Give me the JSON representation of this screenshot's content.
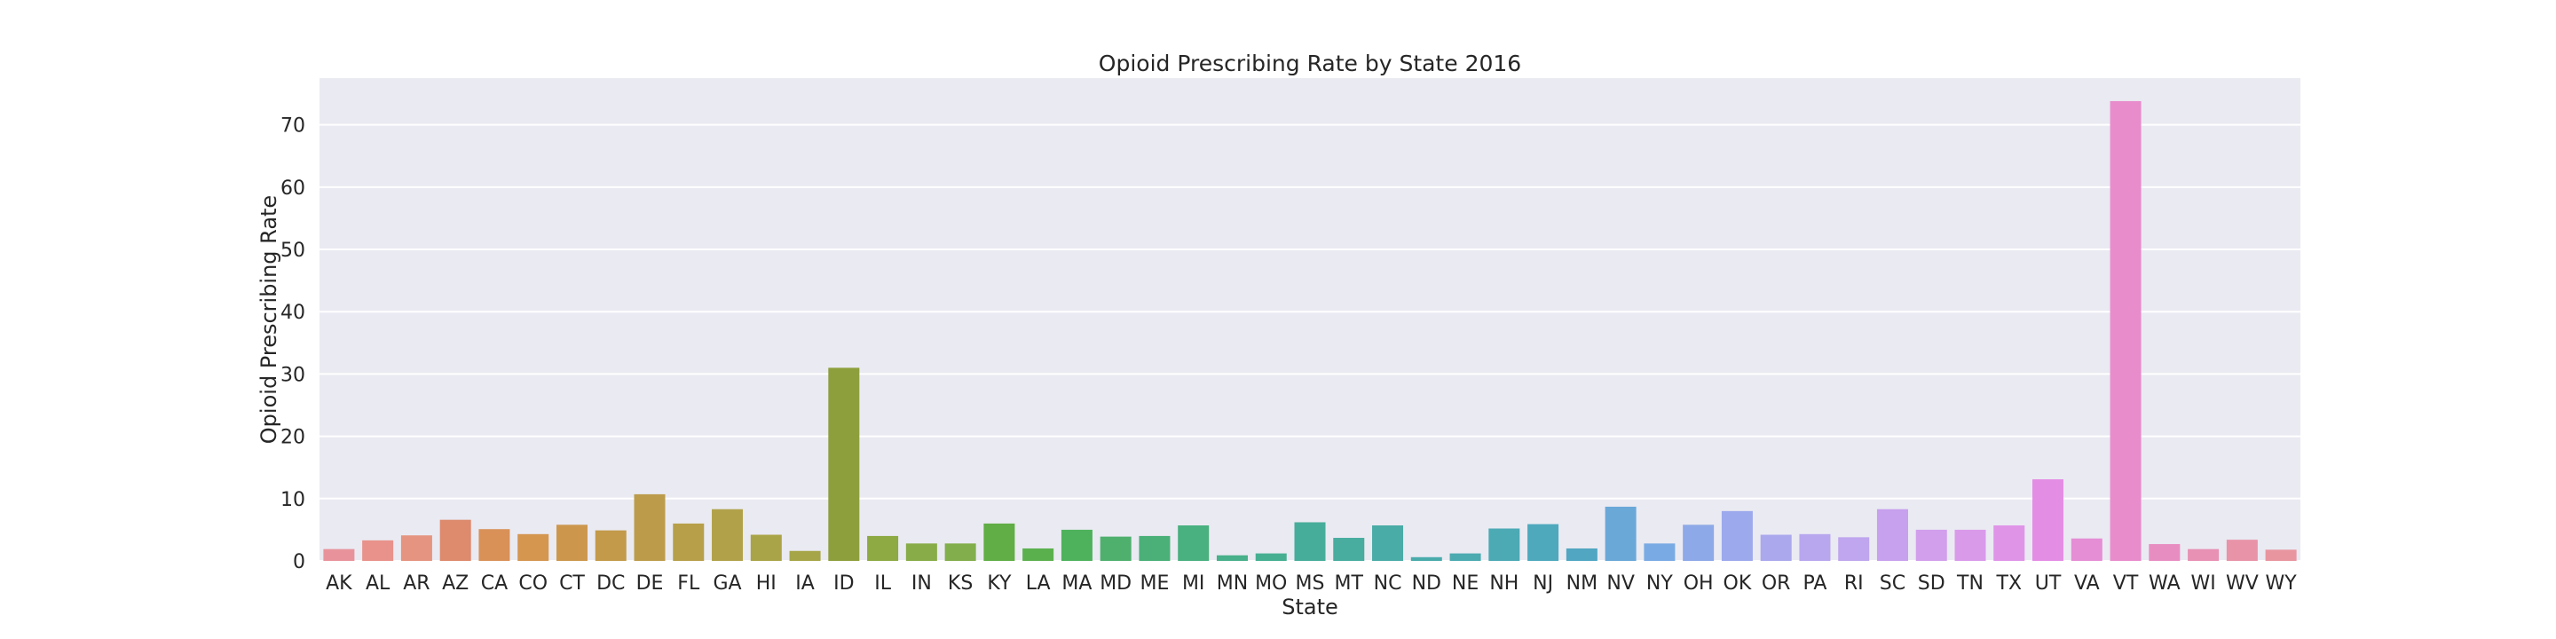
{
  "chart_data": {
    "type": "bar",
    "title": "Opioid Prescribing Rate by State 2016",
    "xlabel": "State",
    "ylabel": "Opioid Prescribing Rate",
    "ylim": [
      0,
      77.5
    ],
    "yticks": [
      0,
      10,
      20,
      30,
      40,
      50,
      60,
      70
    ],
    "grid": true,
    "categories": [
      "AK",
      "AL",
      "AR",
      "AZ",
      "CA",
      "CO",
      "CT",
      "DC",
      "DE",
      "FL",
      "GA",
      "HI",
      "IA",
      "ID",
      "IL",
      "IN",
      "KS",
      "KY",
      "LA",
      "MA",
      "MD",
      "ME",
      "MI",
      "MN",
      "MO",
      "MS",
      "MT",
      "NC",
      "ND",
      "NE",
      "NH",
      "NJ",
      "NM",
      "NV",
      "NY",
      "OH",
      "OK",
      "OR",
      "PA",
      "RI",
      "SC",
      "SD",
      "TN",
      "TX",
      "UT",
      "VA",
      "VT",
      "WA",
      "WI",
      "WV",
      "WY"
    ],
    "values": [
      1.9,
      3.3,
      4.1,
      6.6,
      5.1,
      4.3,
      5.8,
      4.9,
      10.7,
      6.0,
      8.3,
      4.2,
      1.6,
      31.0,
      4.0,
      2.8,
      2.8,
      6.0,
      2.0,
      5.0,
      3.9,
      4.0,
      5.7,
      0.9,
      1.2,
      6.2,
      3.7,
      5.7,
      0.6,
      1.2,
      5.2,
      5.9,
      2.0,
      8.7,
      2.8,
      5.8,
      8.0,
      4.2,
      4.3,
      3.8,
      8.3,
      5.0,
      5.0,
      5.7,
      13.1,
      3.6,
      73.8,
      2.7,
      1.9,
      3.4,
      1.8
    ],
    "colors": [
      "#e8939b",
      "#e8928b",
      "#e49480",
      "#dd8a6d",
      "#d99158",
      "#d59650",
      "#cc974d",
      "#c39a4a",
      "#bc9c4b",
      "#b79f4a",
      "#b1a24a",
      "#aaa448",
      "#a6a547",
      "#8d9f3c",
      "#8daa43",
      "#88ac48",
      "#82ae4b",
      "#60ae45",
      "#5bb04e",
      "#4eb25c",
      "#4fb06e",
      "#4ab078",
      "#49b080",
      "#48b08a",
      "#46af92",
      "#47ad9b",
      "#48ac9f",
      "#4aaca6",
      "#4aabab",
      "#4babb0",
      "#4caab5",
      "#4ea9bd",
      "#51a6c2",
      "#6aa8d8",
      "#7aaae3",
      "#8ea9e8",
      "#9ca9ec",
      "#aba8ed",
      "#b8a7ee",
      "#bfa6ee",
      "#c7a0ee",
      "#d29fec",
      "#d99aea",
      "#df94e8",
      "#e48de5",
      "#e58dd5",
      "#e88ccc",
      "#e88dc2",
      "#e891b5",
      "#e893a8",
      "#e8959f"
    ]
  }
}
